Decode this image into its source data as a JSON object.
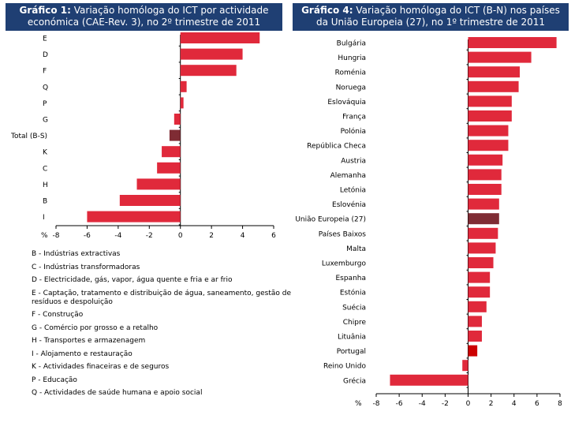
{
  "chart_data": [
    {
      "type": "bar",
      "orientation": "horizontal",
      "title_bold": "Gráfico 1:",
      "title_text": "Variação homóloga do ICT por actividade económica (CAE-Rev. 3), no 2º trimestre de 2011",
      "categories": [
        "E",
        "D",
        "F",
        "Q",
        "P",
        "G",
        "Total (B-S)",
        "K",
        "C",
        "H",
        "B",
        "I"
      ],
      "values": [
        5.1,
        4.0,
        3.6,
        0.4,
        0.2,
        -0.4,
        -0.7,
        -1.2,
        -1.5,
        -2.8,
        -3.9,
        -6.0
      ],
      "highlight": [
        "Total (B-S)"
      ],
      "xlim": [
        -8,
        6
      ],
      "xticks": [
        -8,
        -6,
        -4,
        -2,
        0,
        2,
        4,
        6
      ],
      "unit_label": "%",
      "colors": {
        "bar": "#e0293b",
        "total": "#7f2c34",
        "axis": "#000000"
      }
    },
    {
      "type": "bar",
      "orientation": "horizontal",
      "title_bold": "Gráfico 4:",
      "title_text": "Variação homóloga do ICT (B-N) nos países da União Europeia (27), no 1º trimestre de 2011",
      "categories": [
        "Bulgária",
        "Hungria",
        "Roménia",
        "Noruega",
        "Eslováquia",
        "França",
        "Polónia",
        "República Checa",
        "Austria",
        "Alemanha",
        "Letónia",
        "Eslovénia",
        "União Europeia (27)",
        "Países Baixos",
        "Malta",
        "Luxemburgo",
        "Espanha",
        "Estónia",
        "Suécia",
        "Chipre",
        "Lituânia",
        "Portugal",
        "Reino Unido",
        "Grécia"
      ],
      "values": [
        7.7,
        5.5,
        4.5,
        4.4,
        3.8,
        3.8,
        3.5,
        3.5,
        3.0,
        2.9,
        2.9,
        2.7,
        2.7,
        2.6,
        2.4,
        2.2,
        1.9,
        1.9,
        1.6,
        1.2,
        1.2,
        0.8,
        -0.5,
        -6.8
      ],
      "highlight": [
        "União Europeia (27)"
      ],
      "highlight_secondary": [
        "Portugal"
      ],
      "xlim": [
        -8,
        8
      ],
      "xticks": [
        -8,
        -6,
        -4,
        -2,
        0,
        2,
        4,
        6,
        8
      ],
      "unit_label": "%",
      "colors": {
        "bar": "#e0293b",
        "total": "#7f2c34",
        "portugal": "#cc0000",
        "axis": "#000000"
      }
    }
  ],
  "legend": [
    "B - Indústrias extractivas",
    "C - Indústrias transformadoras",
    "D - Electricidade, gás, vapor, água quente e fria e ar frio",
    "E - Captação, tratamento e distribuição de água, saneamento, gestão de resíduos e despoluição",
    "F - Construção",
    "G - Comércio por grosso e a retalho",
    "H - Transportes e armazenagem",
    "I - Alojamento e restauração",
    "K - Actividades finaceiras e de seguros",
    "P - Educação",
    "Q - Actividades de saúde humana e apoio social"
  ]
}
